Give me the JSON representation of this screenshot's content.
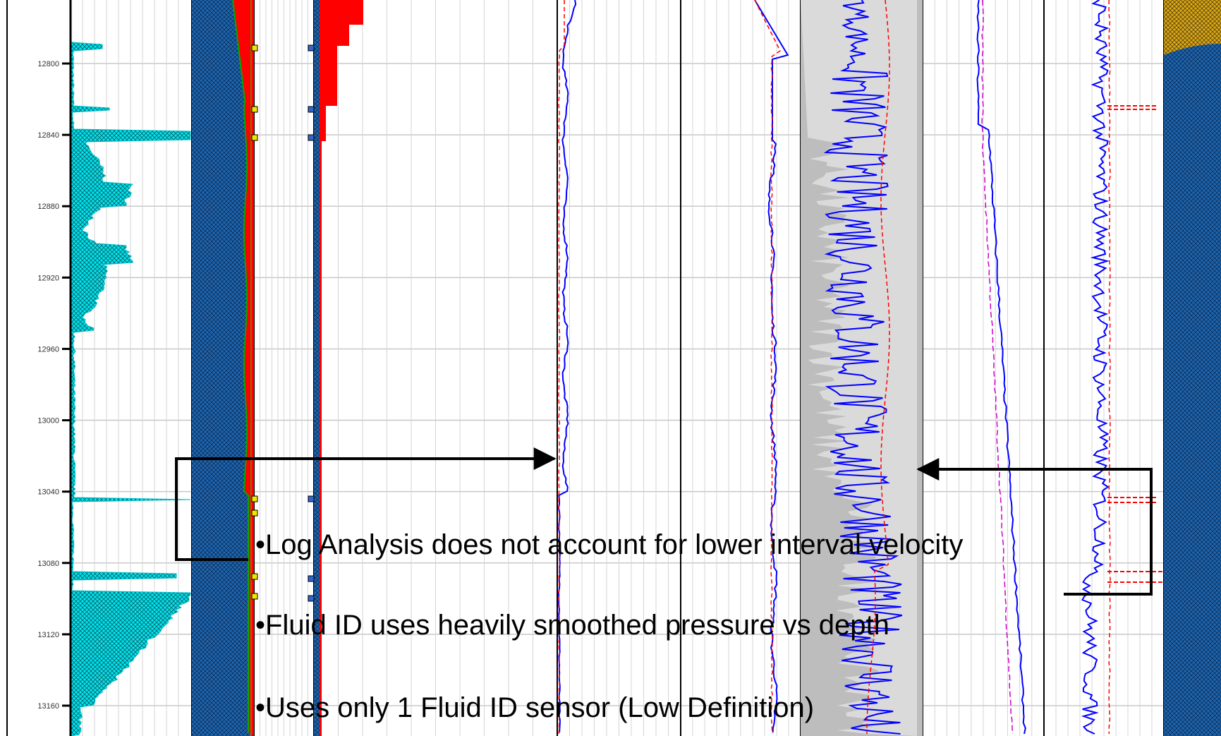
{
  "chart_data": {
    "type": "line",
    "title": "",
    "xlabel": "",
    "ylabel": "",
    "depth_axis": {
      "min": 12780,
      "max": 13180,
      "tick_labels": [
        "12800",
        "12840",
        "12880",
        "12920",
        "12960",
        "13000",
        "13040",
        "13080",
        "13120",
        "13160"
      ]
    },
    "grid": true,
    "tracks": [
      {
        "name": "",
        "curves": [
          {
            "color": "#00e5ee",
            "style": "fill-hatched"
          }
        ]
      },
      {
        "name": "",
        "curves": [
          {
            "color": "#1a5fa8",
            "style": "fill-hatched"
          },
          {
            "color": "#ff0000",
            "style": "fill"
          },
          {
            "color": "#00aa00",
            "style": "line"
          }
        ]
      },
      {
        "name": "",
        "curves": [
          {
            "color": "#ff0000",
            "style": "fill"
          }
        ]
      },
      {
        "name": "",
        "curves": [
          {
            "color": "#0000ff",
            "style": "line"
          },
          {
            "color": "#ff0000",
            "style": "dashed"
          }
        ]
      },
      {
        "name": "",
        "curves": [
          {
            "color": "#0000ff",
            "style": "line"
          },
          {
            "color": "#ff0000",
            "style": "dashed"
          }
        ]
      },
      {
        "name": "",
        "curves": [
          {
            "color": "#bdbdbd",
            "style": "fill"
          },
          {
            "color": "#0000ff",
            "style": "line"
          },
          {
            "color": "#ff0000",
            "style": "dashed"
          }
        ]
      },
      {
        "name": "",
        "curves": [
          {
            "color": "#0000ff",
            "style": "line"
          },
          {
            "color": "#cc00cc",
            "style": "dashed"
          }
        ]
      },
      {
        "name": "",
        "curves": [
          {
            "color": "#0000ff",
            "style": "line"
          },
          {
            "color": "#ff0000",
            "style": "dashed"
          }
        ]
      },
      {
        "name": "",
        "curves": [
          {
            "color": "#1a5fa8",
            "style": "fill-hatched"
          },
          {
            "color": "#d4a017",
            "style": "fill-hatched"
          }
        ]
      }
    ]
  },
  "annotations": {
    "bullets": [
      "•Log Analysis does not account for lower interval velocity",
      "•Fluid ID uses heavily smoothed pressure vs depth",
      "•Uses only 1 Fluid ID sensor (Low Definition)"
    ]
  },
  "colors": {
    "cyan": "#00e5ee",
    "blue_fill": "#1a5fa8",
    "red": "#ff0000",
    "curve_blue": "#0000ff",
    "gray_fill": "#bdbdbd",
    "gold": "#d4a017",
    "magenta": "#cc00cc"
  }
}
